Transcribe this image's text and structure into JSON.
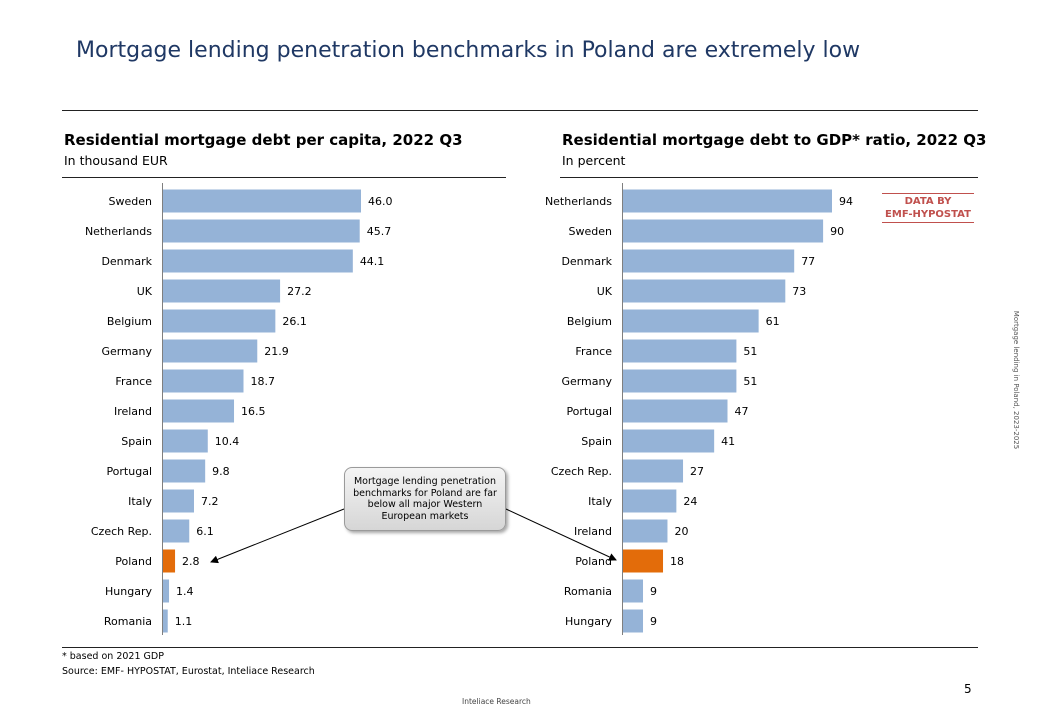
{
  "title": "Mortgage lending penetration benchmarks in Poland are extremely low",
  "colors": {
    "bar": "#95b3d7",
    "highlight": "#e36c0a",
    "title": "#1f3864",
    "badge": "#c0504d"
  },
  "chart_data": [
    {
      "type": "bar",
      "orientation": "horizontal",
      "title": "Residential mortgage debt per capita, 2022 Q3",
      "subtitle": "In thousand EUR",
      "categories": [
        "Sweden",
        "Netherlands",
        "Denmark",
        "UK",
        "Belgium",
        "Germany",
        "France",
        "Ireland",
        "Spain",
        "Portugal",
        "Italy",
        "Czech Rep.",
        "Poland",
        "Hungary",
        "Romania"
      ],
      "values": [
        46.0,
        45.7,
        44.1,
        27.2,
        26.1,
        21.9,
        18.7,
        16.5,
        10.4,
        9.8,
        7.2,
        6.1,
        2.8,
        1.4,
        1.1
      ],
      "value_labels": [
        "46.0",
        "45.7",
        "44.1",
        "27.2",
        "26.1",
        "21.9",
        "18.7",
        "16.5",
        "10.4",
        "9.8",
        "7.2",
        "6.1",
        "2.8",
        "1.4",
        "1.1"
      ],
      "highlight": "Poland",
      "xlim": [
        0,
        46
      ]
    },
    {
      "type": "bar",
      "orientation": "horizontal",
      "title": "Residential mortgage debt to GDP* ratio, 2022 Q3",
      "subtitle": "In percent",
      "categories": [
        "Netherlands",
        "Sweden",
        "Denmark",
        "UK",
        "Belgium",
        "France",
        "Germany",
        "Portugal",
        "Spain",
        "Czech Rep.",
        "Italy",
        "Ireland",
        "Poland",
        "Romania",
        "Hungary"
      ],
      "values": [
        94,
        90,
        77,
        73,
        61,
        51,
        51,
        47,
        41,
        27,
        24,
        20,
        18,
        9,
        9
      ],
      "value_labels": [
        "94",
        "90",
        "77",
        "73",
        "61",
        "51",
        "51",
        "47",
        "41",
        "27",
        "24",
        "20",
        "18",
        "9",
        "9"
      ],
      "highlight": "Poland",
      "xlim": [
        0,
        94
      ]
    }
  ],
  "callout": "Mortgage lending penetration benchmarks for Poland are far below all major Western European markets",
  "badge": {
    "line1": "DATA BY",
    "line2": "EMF-HYPOSTAT"
  },
  "footnote": "* based on 2021 GDP",
  "source": "Source: EMF- HYPOSTAT, Eurostat, Inteliace Research",
  "side_text": "Mortgage lending in Poland, 2023-2025",
  "page_number": "5",
  "footer": "Inteliace Research"
}
